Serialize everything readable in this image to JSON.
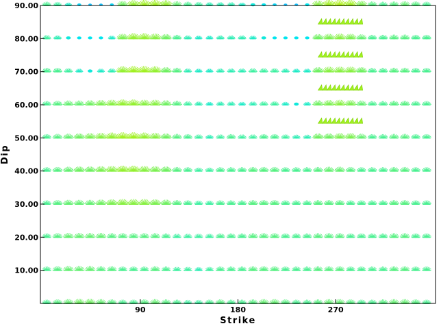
{
  "chart_data": {
    "type": "scatter",
    "title": "",
    "xlabel": "Strike",
    "ylabel": "Dip",
    "x_ticks": [
      "90",
      "180",
      "270"
    ],
    "x_tick_values": [
      90,
      180,
      270
    ],
    "y_ticks": [
      "10.00",
      "20.00",
      "30.00",
      "40.00",
      "50.00",
      "60.00",
      "70.00",
      "80.00",
      "90.00"
    ],
    "y_tick_values": [
      10,
      20,
      30,
      40,
      50,
      60,
      70,
      80,
      90
    ],
    "xlim": [
      -2,
      362
    ],
    "ylim": [
      0,
      90
    ],
    "grid": false,
    "strike_start": 0,
    "strike_step": 10,
    "strike_count": 36,
    "dip_rows": [
      0,
      10,
      20,
      30,
      40,
      50,
      60,
      70,
      80,
      90
    ],
    "fit_color_scale": [
      "#1e90ff",
      "#00e5ee",
      "#3cf0a0",
      "#6ef060",
      "#a0f020",
      "#d4f000"
    ],
    "mechanism_glyph": "fan",
    "highlight": {
      "strike_range": [
        250,
        300
      ],
      "dip_values": [
        55,
        65,
        75,
        85
      ],
      "color": "#a0f020"
    },
    "rows": [
      {
        "dip": 0,
        "fit": [
          0.45,
          0.5,
          0.55,
          0.6,
          0.6,
          0.55,
          0.5,
          0.45,
          0.45,
          0.5,
          0.55,
          0.5,
          0.45,
          0.4,
          0.4,
          0.45,
          0.5,
          0.45,
          0.45,
          0.5,
          0.55,
          0.55,
          0.5,
          0.45,
          0.45,
          0.5,
          0.55,
          0.55,
          0.5,
          0.45,
          0.45,
          0.5,
          0.55,
          0.55,
          0.5,
          0.45
        ]
      },
      {
        "dip": 10,
        "fit": [
          0.45,
          0.5,
          0.55,
          0.55,
          0.55,
          0.5,
          0.5,
          0.45,
          0.45,
          0.45,
          0.5,
          0.45,
          0.4,
          0.4,
          0.35,
          0.4,
          0.45,
          0.45,
          0.45,
          0.5,
          0.5,
          0.5,
          0.45,
          0.45,
          0.45,
          0.5,
          0.5,
          0.5,
          0.45,
          0.45,
          0.45,
          0.45,
          0.5,
          0.5,
          0.45,
          0.45
        ]
      },
      {
        "dip": 20,
        "fit": [
          0.45,
          0.5,
          0.55,
          0.55,
          0.55,
          0.55,
          0.5,
          0.5,
          0.5,
          0.5,
          0.5,
          0.45,
          0.4,
          0.4,
          0.4,
          0.4,
          0.45,
          0.45,
          0.45,
          0.5,
          0.5,
          0.5,
          0.45,
          0.45,
          0.45,
          0.5,
          0.5,
          0.5,
          0.45,
          0.45,
          0.45,
          0.45,
          0.5,
          0.5,
          0.45,
          0.45
        ]
      },
      {
        "dip": 30,
        "fit": [
          0.45,
          0.5,
          0.55,
          0.55,
          0.55,
          0.6,
          0.65,
          0.7,
          0.7,
          0.7,
          0.65,
          0.6,
          0.5,
          0.45,
          0.4,
          0.4,
          0.45,
          0.45,
          0.45,
          0.5,
          0.5,
          0.5,
          0.45,
          0.45,
          0.45,
          0.5,
          0.5,
          0.5,
          0.45,
          0.45,
          0.45,
          0.45,
          0.5,
          0.5,
          0.45,
          0.45
        ]
      },
      {
        "dip": 40,
        "fit": [
          0.45,
          0.5,
          0.55,
          0.6,
          0.6,
          0.65,
          0.7,
          0.75,
          0.75,
          0.7,
          0.65,
          0.6,
          0.5,
          0.45,
          0.4,
          0.4,
          0.45,
          0.45,
          0.45,
          0.5,
          0.5,
          0.5,
          0.45,
          0.45,
          0.45,
          0.5,
          0.55,
          0.55,
          0.5,
          0.45,
          0.45,
          0.45,
          0.5,
          0.5,
          0.45,
          0.45
        ]
      },
      {
        "dip": 50,
        "fit": [
          0.45,
          0.5,
          0.55,
          0.6,
          0.65,
          0.7,
          0.75,
          0.8,
          0.8,
          0.75,
          0.7,
          0.6,
          0.5,
          0.45,
          0.4,
          0.35,
          0.4,
          0.45,
          0.4,
          0.4,
          0.45,
          0.45,
          0.4,
          0.35,
          0.35,
          0.6,
          0.6,
          0.65,
          0.65,
          0.55,
          0.45,
          0.45,
          0.5,
          0.5,
          0.45,
          0.45
        ]
      },
      {
        "dip": 60,
        "fit": [
          0.45,
          0.5,
          0.55,
          0.55,
          0.6,
          0.65,
          0.7,
          0.75,
          0.75,
          0.7,
          0.7,
          0.6,
          0.5,
          0.4,
          0.35,
          0.3,
          0.35,
          0.35,
          0.3,
          0.35,
          0.4,
          0.4,
          0.3,
          0.25,
          0.3,
          0.6,
          0.65,
          0.7,
          0.65,
          0.55,
          0.45,
          0.45,
          0.5,
          0.5,
          0.45,
          0.45
        ]
      },
      {
        "dip": 70,
        "fit": [
          0.45,
          0.45,
          0.4,
          0.3,
          0.25,
          0.3,
          0.35,
          0.75,
          0.8,
          0.8,
          0.75,
          0.6,
          0.5,
          0.35,
          0.3,
          0.3,
          0.35,
          0.35,
          0.35,
          0.4,
          0.4,
          0.4,
          0.35,
          0.3,
          0.3,
          0.6,
          0.7,
          0.7,
          0.7,
          0.6,
          0.45,
          0.45,
          0.5,
          0.5,
          0.45,
          0.45
        ]
      },
      {
        "dip": 80,
        "fit": [
          0.4,
          0.35,
          0.25,
          0.2,
          0.2,
          0.2,
          0.3,
          0.65,
          0.75,
          0.75,
          0.7,
          0.6,
          0.45,
          0.35,
          0.3,
          0.3,
          0.35,
          0.35,
          0.35,
          0.3,
          0.25,
          0.2,
          0.2,
          0.2,
          0.2,
          0.6,
          0.65,
          0.7,
          0.65,
          0.55,
          0.45,
          0.45,
          0.5,
          0.5,
          0.45,
          0.45
        ]
      },
      {
        "dip": 90,
        "fit": [
          0.45,
          0.4,
          0.3,
          0.15,
          0.1,
          0.1,
          0.15,
          0.6,
          0.75,
          0.8,
          0.8,
          0.75,
          0.55,
          0.45,
          0.4,
          0.35,
          0.35,
          0.35,
          0.3,
          0.25,
          0.2,
          0.15,
          0.1,
          0.1,
          0.2,
          0.7,
          0.8,
          0.85,
          0.8,
          0.65,
          0.5,
          0.45,
          0.5,
          0.55,
          0.5,
          0.45
        ]
      }
    ]
  }
}
